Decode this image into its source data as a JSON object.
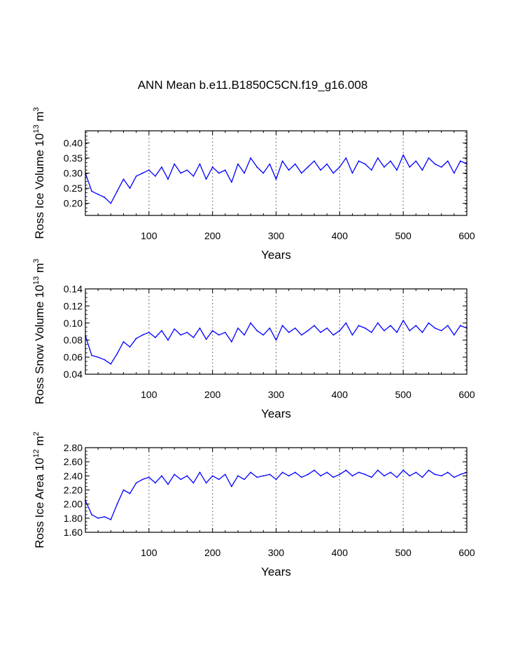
{
  "title": "ANN Mean b.e11.B1850C5CN.f19_g16.008",
  "chart_data": [
    {
      "type": "line",
      "ylabel_main": "Ross Ice Volume 10",
      "ylabel_exp1": "13",
      "ylabel_mid": " m",
      "ylabel_exp2": "3",
      "xlabel": "Years",
      "xlim": [
        0,
        600
      ],
      "ylim": [
        0.16,
        0.44
      ],
      "xticks": [
        100,
        200,
        300,
        400,
        500,
        600
      ],
      "xtick_labels": [
        "100",
        "200",
        "300",
        "400",
        "500",
        "600"
      ],
      "yticks": [
        0.2,
        0.25,
        0.3,
        0.35,
        0.4
      ],
      "ytick_labels": [
        "0.20",
        "0.25",
        "0.30",
        "0.35",
        "0.40"
      ],
      "color": "#0000ff",
      "gridlines_x": [
        100,
        200,
        300,
        400,
        500
      ],
      "x": [
        0,
        10,
        20,
        30,
        40,
        50,
        60,
        70,
        80,
        90,
        100,
        110,
        120,
        130,
        140,
        150,
        160,
        170,
        180,
        190,
        200,
        210,
        220,
        230,
        240,
        250,
        260,
        270,
        280,
        290,
        300,
        310,
        320,
        330,
        340,
        350,
        360,
        370,
        380,
        390,
        400,
        410,
        420,
        430,
        440,
        450,
        460,
        470,
        480,
        490,
        500,
        510,
        520,
        530,
        540,
        550,
        560,
        570,
        580,
        590,
        600
      ],
      "values": [
        0.3,
        0.24,
        0.23,
        0.22,
        0.2,
        0.24,
        0.28,
        0.25,
        0.29,
        0.3,
        0.31,
        0.29,
        0.32,
        0.28,
        0.33,
        0.3,
        0.31,
        0.29,
        0.33,
        0.28,
        0.32,
        0.3,
        0.31,
        0.27,
        0.33,
        0.3,
        0.35,
        0.32,
        0.3,
        0.33,
        0.28,
        0.34,
        0.31,
        0.33,
        0.3,
        0.32,
        0.34,
        0.31,
        0.33,
        0.3,
        0.32,
        0.35,
        0.3,
        0.34,
        0.33,
        0.31,
        0.35,
        0.32,
        0.34,
        0.31,
        0.36,
        0.32,
        0.34,
        0.31,
        0.35,
        0.33,
        0.32,
        0.34,
        0.3,
        0.34,
        0.33
      ]
    },
    {
      "type": "line",
      "ylabel_main": "Ross Snow Volume 10",
      "ylabel_exp1": "13",
      "ylabel_mid": " m",
      "ylabel_exp2": "3",
      "xlabel": "Years",
      "xlim": [
        0,
        600
      ],
      "ylim": [
        0.04,
        0.14
      ],
      "xticks": [
        100,
        200,
        300,
        400,
        500,
        600
      ],
      "xtick_labels": [
        "100",
        "200",
        "300",
        "400",
        "500",
        "600"
      ],
      "yticks": [
        0.04,
        0.06,
        0.08,
        0.1,
        0.12,
        0.14
      ],
      "ytick_labels": [
        "0.04",
        "0.06",
        "0.08",
        "0.10",
        "0.12",
        "0.14"
      ],
      "color": "#0000ff",
      "gridlines_x": [
        100,
        200,
        300,
        400,
        500
      ],
      "x": [
        0,
        10,
        20,
        30,
        40,
        50,
        60,
        70,
        80,
        90,
        100,
        110,
        120,
        130,
        140,
        150,
        160,
        170,
        180,
        190,
        200,
        210,
        220,
        230,
        240,
        250,
        260,
        270,
        280,
        290,
        300,
        310,
        320,
        330,
        340,
        350,
        360,
        370,
        380,
        390,
        400,
        410,
        420,
        430,
        440,
        450,
        460,
        470,
        480,
        490,
        500,
        510,
        520,
        530,
        540,
        550,
        560,
        570,
        580,
        590,
        600
      ],
      "values": [
        0.085,
        0.062,
        0.06,
        0.057,
        0.052,
        0.064,
        0.078,
        0.072,
        0.082,
        0.086,
        0.089,
        0.083,
        0.091,
        0.08,
        0.093,
        0.086,
        0.089,
        0.083,
        0.094,
        0.081,
        0.091,
        0.086,
        0.089,
        0.078,
        0.094,
        0.086,
        0.1,
        0.091,
        0.086,
        0.094,
        0.08,
        0.097,
        0.089,
        0.094,
        0.086,
        0.091,
        0.097,
        0.089,
        0.094,
        0.086,
        0.091,
        0.1,
        0.086,
        0.097,
        0.094,
        0.089,
        0.1,
        0.091,
        0.097,
        0.089,
        0.103,
        0.091,
        0.097,
        0.089,
        0.1,
        0.094,
        0.091,
        0.097,
        0.086,
        0.097,
        0.094
      ]
    },
    {
      "type": "line",
      "ylabel_main": "Ross Ice Area 10",
      "ylabel_exp1": "12",
      "ylabel_mid": " m",
      "ylabel_exp2": "2",
      "xlabel": "Years",
      "xlim": [
        0,
        600
      ],
      "ylim": [
        1.6,
        2.8
      ],
      "xticks": [
        100,
        200,
        300,
        400,
        500,
        600
      ],
      "xtick_labels": [
        "100",
        "200",
        "300",
        "400",
        "500",
        "600"
      ],
      "yticks": [
        1.6,
        1.8,
        2.0,
        2.2,
        2.4,
        2.6,
        2.8
      ],
      "ytick_labels": [
        "1.60",
        "1.80",
        "2.00",
        "2.20",
        "2.40",
        "2.60",
        "2.80"
      ],
      "color": "#0000ff",
      "gridlines_x": [
        100,
        200,
        300,
        400,
        500
      ],
      "x": [
        0,
        10,
        20,
        30,
        40,
        50,
        60,
        70,
        80,
        90,
        100,
        110,
        120,
        130,
        140,
        150,
        160,
        170,
        180,
        190,
        200,
        210,
        220,
        230,
        240,
        250,
        260,
        270,
        280,
        290,
        300,
        310,
        320,
        330,
        340,
        350,
        360,
        370,
        380,
        390,
        400,
        410,
        420,
        430,
        440,
        450,
        460,
        470,
        480,
        490,
        500,
        510,
        520,
        530,
        540,
        550,
        560,
        570,
        580,
        590,
        600
      ],
      "values": [
        2.05,
        1.85,
        1.8,
        1.82,
        1.78,
        2.0,
        2.2,
        2.15,
        2.3,
        2.35,
        2.38,
        2.3,
        2.4,
        2.28,
        2.42,
        2.35,
        2.4,
        2.3,
        2.45,
        2.3,
        2.4,
        2.35,
        2.42,
        2.25,
        2.4,
        2.35,
        2.45,
        2.38,
        2.4,
        2.42,
        2.35,
        2.45,
        2.4,
        2.45,
        2.38,
        2.42,
        2.48,
        2.4,
        2.45,
        2.38,
        2.42,
        2.48,
        2.4,
        2.45,
        2.42,
        2.38,
        2.48,
        2.4,
        2.45,
        2.38,
        2.48,
        2.4,
        2.45,
        2.38,
        2.48,
        2.42,
        2.4,
        2.45,
        2.38,
        2.42,
        2.45
      ]
    }
  ]
}
